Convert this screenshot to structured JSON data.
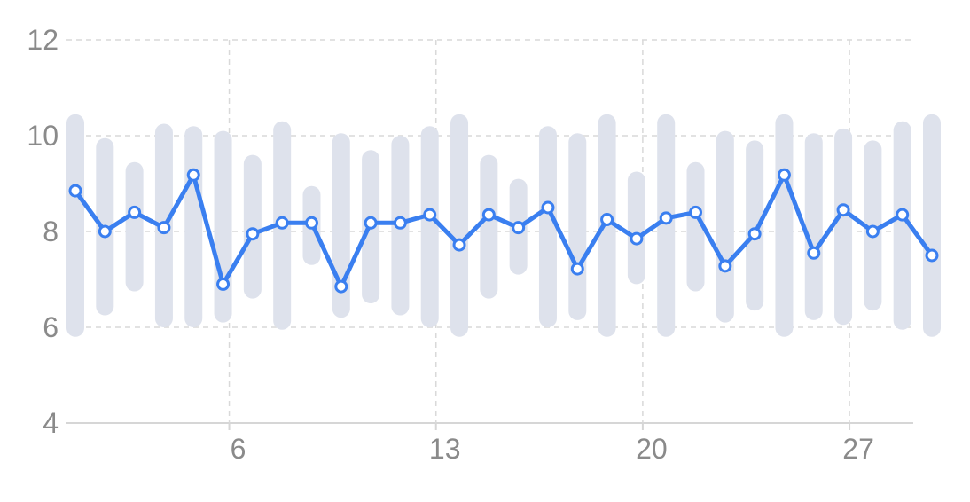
{
  "chart_data": {
    "type": "line",
    "title": "",
    "xlabel": "",
    "ylabel": "",
    "xlim": [
      1,
      30
    ],
    "ylim": [
      4,
      12
    ],
    "x_ticks": [
      6,
      13,
      20,
      27
    ],
    "y_ticks": [
      4,
      6,
      8,
      10,
      12
    ],
    "grid": true,
    "colors": {
      "line": "#3a7ff0",
      "range_bar": "#dee2ec",
      "grid": "#d9d9d9",
      "tick_text": "#8a8a8a"
    },
    "x": [
      1,
      2,
      3,
      4,
      5,
      6,
      7,
      8,
      9,
      10,
      11,
      12,
      13,
      14,
      15,
      16,
      17,
      18,
      19,
      20,
      21,
      22,
      23,
      24,
      25,
      26,
      27,
      28,
      29,
      30
    ],
    "series": [
      {
        "type": "line",
        "values": [
          8.85,
          8.0,
          8.4,
          8.08,
          9.18,
          6.9,
          7.95,
          8.18,
          8.18,
          6.85,
          8.18,
          8.18,
          8.35,
          7.72,
          8.35,
          8.08,
          8.5,
          7.22,
          8.25,
          7.85,
          8.28,
          8.4,
          7.28,
          7.95,
          9.18,
          7.55,
          8.45,
          8.0,
          8.35,
          7.5
        ]
      },
      {
        "type": "range",
        "low": [
          5.8,
          6.25,
          6.75,
          6.0,
          6.0,
          6.1,
          6.6,
          5.95,
          7.3,
          6.2,
          6.5,
          6.25,
          6.0,
          5.8,
          6.6,
          7.1,
          6.0,
          6.15,
          5.8,
          6.9,
          5.8,
          6.75,
          6.1,
          6.35,
          5.8,
          6.15,
          6.05,
          6.35,
          5.95,
          5.8
        ],
        "high": [
          10.45,
          9.95,
          9.45,
          10.25,
          10.2,
          10.1,
          9.6,
          10.3,
          8.95,
          10.05,
          9.7,
          10.0,
          10.2,
          10.45,
          9.6,
          9.1,
          10.2,
          10.05,
          10.45,
          9.25,
          10.45,
          9.45,
          10.1,
          9.9,
          10.45,
          10.05,
          10.15,
          9.9,
          10.3,
          10.45
        ]
      }
    ]
  }
}
